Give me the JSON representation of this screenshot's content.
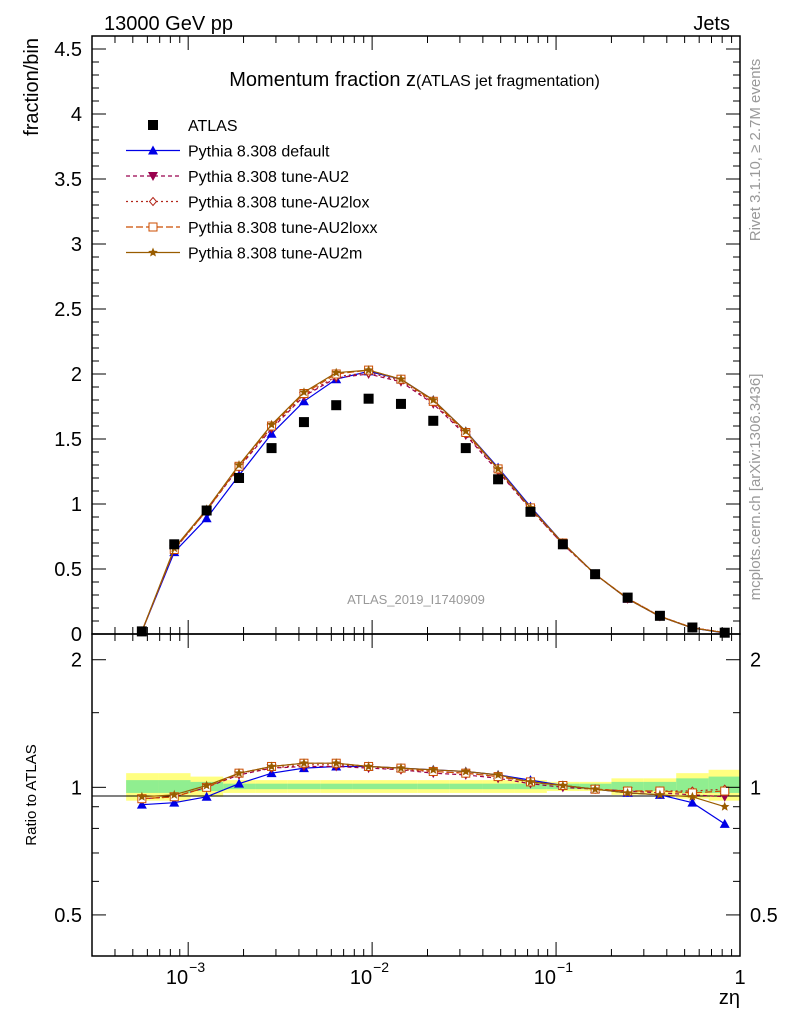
{
  "header": {
    "left": "13000 GeV pp",
    "right": "Jets",
    "side_rivet": "Rivet 3.1.10, ≥ 2.7M events",
    "side_mcplots": "mcplots.cern.ch [arXiv:1306.3436]",
    "analysis_tag": "ATLAS_2019_I1740909"
  },
  "colors": {
    "atlas": "#000000",
    "default": "#0000e6",
    "au2": "#99004d",
    "au2lox": "#b3261a",
    "au2loxx": "#cc4d00",
    "au2m": "#995c00",
    "band_inner": "#90ee90",
    "band_outer": "#ffff80"
  },
  "chart_data": [
    {
      "type": "line",
      "panel": "main",
      "title_main": "Momentum fraction z",
      "title_sub": "(ATLAS jet fragmentation)",
      "ylabel": "fraction/bin",
      "xscale": "log",
      "xlim": [
        0.0003,
        1.0
      ],
      "ylim": [
        0,
        4.6
      ],
      "yticks": [
        "0",
        "0.5",
        "1",
        "1.5",
        "2",
        "2.5",
        "3",
        "3.5",
        "4",
        "4.5"
      ],
      "ytick_values": [
        0,
        0.5,
        1,
        1.5,
        2,
        2.5,
        3,
        3.5,
        4,
        4.5
      ],
      "x": [
        0.00056,
        0.00084,
        0.00126,
        0.00189,
        0.00284,
        0.00426,
        0.00638,
        0.00957,
        0.01435,
        0.0215,
        0.0323,
        0.0484,
        0.0726,
        0.1089,
        0.163,
        0.245,
        0.367,
        0.551,
        0.826
      ],
      "legend": [
        "ATLAS",
        "Pythia 8.308 default",
        "Pythia 8.308 tune-AU2",
        "Pythia 8.308 tune-AU2lox",
        "Pythia 8.308 tune-AU2loxx",
        "Pythia 8.308 tune-AU2m"
      ],
      "legend_position": "top-left",
      "series": [
        {
          "name": "ATLAS",
          "key": "atlas",
          "values": [
            0.02,
            0.69,
            0.95,
            1.2,
            1.43,
            1.63,
            1.76,
            1.81,
            1.77,
            1.64,
            1.43,
            1.19,
            0.94,
            0.69,
            0.46,
            0.28,
            0.14,
            0.05,
            0.01
          ]
        },
        {
          "name": "Pythia 8.308 default",
          "key": "default",
          "values": [
            0.02,
            0.63,
            0.89,
            1.22,
            1.54,
            1.79,
            1.96,
            2.02,
            1.96,
            1.8,
            1.56,
            1.28,
            0.98,
            0.7,
            0.46,
            0.27,
            0.135,
            0.045,
            0.008
          ]
        },
        {
          "name": "Pythia 8.308 tune-AU2",
          "key": "au2",
          "values": [
            0.02,
            0.65,
            0.95,
            1.28,
            1.58,
            1.83,
            1.97,
            2.0,
            1.94,
            1.77,
            1.53,
            1.25,
            0.96,
            0.69,
            0.46,
            0.27,
            0.135,
            0.048,
            0.01
          ]
        },
        {
          "name": "Pythia 8.308 tune-AU2lox",
          "key": "au2lox",
          "values": [
            0.02,
            0.65,
            0.95,
            1.29,
            1.59,
            1.84,
            1.98,
            2.01,
            1.95,
            1.78,
            1.54,
            1.26,
            0.96,
            0.69,
            0.46,
            0.275,
            0.138,
            0.049,
            0.011
          ]
        },
        {
          "name": "Pythia 8.308 tune-AU2loxx",
          "key": "au2loxx",
          "values": [
            0.02,
            0.65,
            0.95,
            1.29,
            1.6,
            1.85,
            2.0,
            2.03,
            1.96,
            1.79,
            1.55,
            1.27,
            0.97,
            0.7,
            0.46,
            0.275,
            0.138,
            0.048,
            0.011
          ]
        },
        {
          "name": "Pythia 8.308 tune-AU2m",
          "key": "au2m",
          "values": [
            0.02,
            0.66,
            0.96,
            1.3,
            1.61,
            1.86,
            2.01,
            2.03,
            1.96,
            1.8,
            1.56,
            1.27,
            0.97,
            0.7,
            0.46,
            0.27,
            0.135,
            0.045,
            0.009
          ]
        }
      ]
    },
    {
      "type": "line",
      "panel": "ratio",
      "ylabel": "Ratio to ATLAS",
      "xlabel": "zη",
      "xscale": "log",
      "xlim": [
        0.0003,
        1.0
      ],
      "ylim": [
        0.4,
        2.3
      ],
      "yticks": [
        "0.5",
        "1",
        "2"
      ],
      "ytick_values": [
        0.5,
        1,
        2
      ],
      "xticks": [
        "10",
        "10",
        "10",
        "1"
      ],
      "xtick_exponents": [
        "−3",
        "−2",
        "−1",
        ""
      ],
      "xtick_values": [
        0.001,
        0.01,
        0.1,
        1
      ],
      "x": [
        0.00056,
        0.00084,
        0.00126,
        0.00189,
        0.00284,
        0.00426,
        0.00638,
        0.00957,
        0.01435,
        0.0215,
        0.0323,
        0.0484,
        0.0726,
        0.1089,
        0.163,
        0.245,
        0.367,
        0.551,
        0.826
      ],
      "band_edges": [
        0.00046,
        0.00069,
        0.00103,
        0.00155,
        0.00232,
        0.00348,
        0.00522,
        0.00783,
        0.01175,
        0.0176,
        0.0264,
        0.0396,
        0.0594,
        0.0891,
        0.1337,
        0.2,
        0.3,
        0.45,
        0.675,
        1.0
      ],
      "band_inner": [
        [
          0.97,
          1.04
        ],
        [
          0.97,
          1.04
        ],
        [
          0.98,
          1.03
        ],
        [
          0.99,
          1.02
        ],
        [
          0.99,
          1.02
        ],
        [
          0.99,
          1.02
        ],
        [
          0.99,
          1.02
        ],
        [
          0.99,
          1.02
        ],
        [
          0.99,
          1.02
        ],
        [
          0.99,
          1.02
        ],
        [
          0.99,
          1.02
        ],
        [
          0.99,
          1.02
        ],
        [
          0.99,
          1.02
        ],
        [
          0.99,
          1.02
        ],
        [
          0.99,
          1.02
        ],
        [
          0.98,
          1.03
        ],
        [
          0.98,
          1.03
        ],
        [
          0.97,
          1.05
        ],
        [
          0.97,
          1.06
        ]
      ],
      "band_outer": [
        [
          0.93,
          1.08
        ],
        [
          0.93,
          1.08
        ],
        [
          0.95,
          1.06
        ],
        [
          0.97,
          1.04
        ],
        [
          0.97,
          1.04
        ],
        [
          0.97,
          1.04
        ],
        [
          0.97,
          1.04
        ],
        [
          0.97,
          1.04
        ],
        [
          0.97,
          1.04
        ],
        [
          0.97,
          1.04
        ],
        [
          0.97,
          1.04
        ],
        [
          0.97,
          1.04
        ],
        [
          0.97,
          1.04
        ],
        [
          0.98,
          1.03
        ],
        [
          0.98,
          1.03
        ],
        [
          0.96,
          1.05
        ],
        [
          0.96,
          1.05
        ],
        [
          0.94,
          1.08
        ],
        [
          0.93,
          1.1
        ]
      ],
      "series": [
        {
          "name": "Pythia 8.308 default",
          "key": "default",
          "values": [
            0.91,
            0.92,
            0.95,
            1.02,
            1.08,
            1.11,
            1.12,
            1.12,
            1.11,
            1.1,
            1.09,
            1.07,
            1.04,
            1.01,
            0.99,
            0.97,
            0.96,
            0.92,
            0.82
          ]
        },
        {
          "name": "Pythia 8.308 tune-AU2",
          "key": "au2",
          "values": [
            0.94,
            0.95,
            1.0,
            1.07,
            1.11,
            1.12,
            1.12,
            1.11,
            1.1,
            1.08,
            1.07,
            1.05,
            1.02,
            1.0,
            0.99,
            0.98,
            0.97,
            0.96,
            0.95
          ]
        },
        {
          "name": "Pythia 8.308 tune-AU2lox",
          "key": "au2lox",
          "values": [
            0.94,
            0.95,
            1.0,
            1.08,
            1.11,
            1.13,
            1.13,
            1.12,
            1.1,
            1.09,
            1.08,
            1.06,
            1.03,
            1.01,
            0.99,
            0.98,
            0.98,
            0.98,
            0.99
          ]
        },
        {
          "name": "Pythia 8.308 tune-AU2loxx",
          "key": "au2loxx",
          "values": [
            0.94,
            0.95,
            1.0,
            1.08,
            1.12,
            1.14,
            1.14,
            1.12,
            1.11,
            1.09,
            1.08,
            1.06,
            1.03,
            1.01,
            0.99,
            0.98,
            0.98,
            0.97,
            0.98
          ]
        },
        {
          "name": "Pythia 8.308 tune-AU2m",
          "key": "au2m",
          "values": [
            0.95,
            0.96,
            1.01,
            1.08,
            1.12,
            1.14,
            1.14,
            1.12,
            1.11,
            1.1,
            1.09,
            1.07,
            1.03,
            1.01,
            0.99,
            0.97,
            0.96,
            0.95,
            0.9
          ]
        }
      ]
    }
  ]
}
